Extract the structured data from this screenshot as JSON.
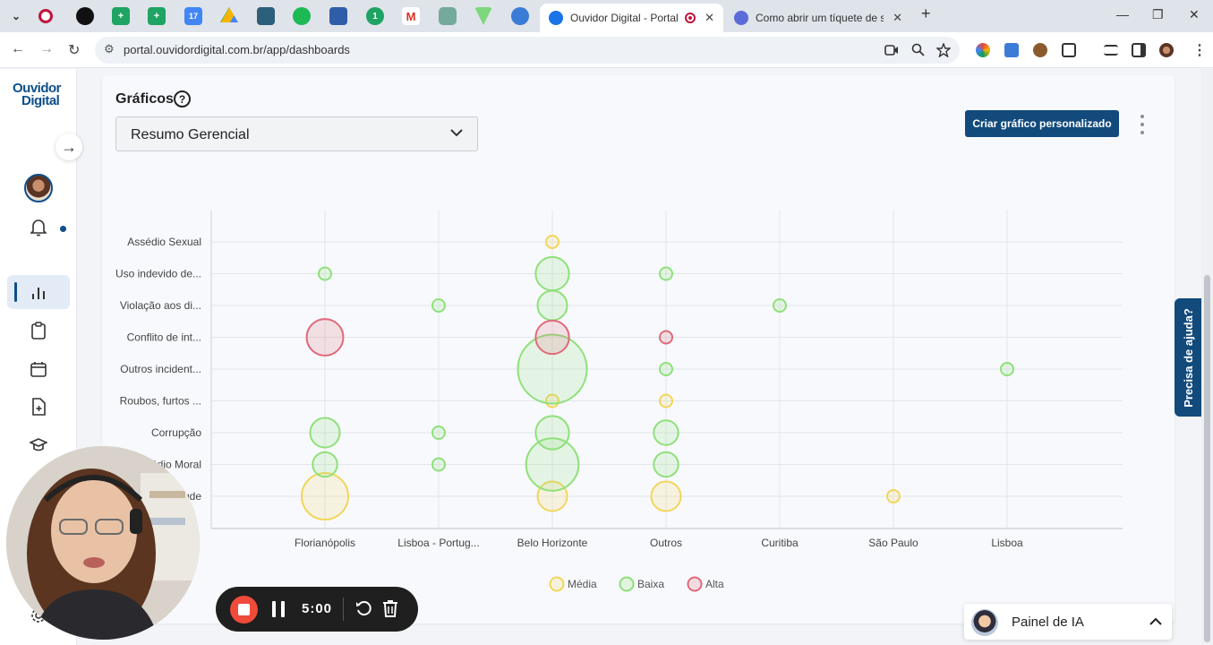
{
  "browser": {
    "tabs": [
      {
        "title": "Ouvidor Digital - Portal",
        "active": true
      },
      {
        "title": "Como abrir um tíquete de suporte",
        "active": false
      }
    ],
    "url": "portal.ouvidordigital.com.br/app/dashboards",
    "new_tab_glyph": "+",
    "minimize_glyph": "—",
    "restore_glyph": "❐",
    "close_glyph": "✕"
  },
  "sidebar": {
    "logo_top": "Ouvidor",
    "logo_bottom": "Digital",
    "items": [
      "bell-icon",
      "chart-icon",
      "clipboard-icon",
      "calendar-icon",
      "file-plus-icon",
      "graduation-cap-icon",
      "settings-icon"
    ]
  },
  "main": {
    "section_title": "Gráficos",
    "help_glyph": "?",
    "dashboard_select": "Resumo Gerencial",
    "create_button": "Criar gráfico personalizado"
  },
  "chart_data": {
    "type": "scatter",
    "x_categories": [
      "Florianópolis",
      "Lisboa - Portug...",
      "Belo Horizonte",
      "Outros",
      "Curitiba",
      "São Paulo",
      "Lisboa"
    ],
    "y_categories": [
      "Assédio Sexual",
      "Uso indevido de...",
      "Violação aos di...",
      "Conflito de int...",
      "Outros incident...",
      "Roubos, furtos ...",
      "Corrupção",
      "Assédio Moral",
      "Fraude"
    ],
    "legend_position": "bottom",
    "grid": true,
    "series": [
      {
        "name": "Média",
        "color": "#f2d55c",
        "points": [
          {
            "x": "Florianópolis",
            "y": "Fraude",
            "size": 5
          },
          {
            "x": "Belo Horizonte",
            "y": "Assédio Sexual",
            "size": 1
          },
          {
            "x": "Belo Horizonte",
            "y": "Roubos, furtos ...",
            "size": 1
          },
          {
            "x": "Belo Horizonte",
            "y": "Fraude",
            "size": 2
          },
          {
            "x": "Outros",
            "y": "Roubos, furtos ...",
            "size": 1
          },
          {
            "x": "Outros",
            "y": "Fraude",
            "size": 2
          },
          {
            "x": "São Paulo",
            "y": "Fraude",
            "size": 1
          }
        ]
      },
      {
        "name": "Baixa",
        "color": "#8fe07a",
        "points": [
          {
            "x": "Florianópolis",
            "y": "Uso indevido de...",
            "size": 1
          },
          {
            "x": "Florianópolis",
            "y": "Corrupção",
            "size": 2
          },
          {
            "x": "Florianópolis",
            "y": "Assédio Moral",
            "size": 1.5
          },
          {
            "x": "Lisboa - Portug...",
            "y": "Violação aos di...",
            "size": 1
          },
          {
            "x": "Lisboa - Portug...",
            "y": "Corrupção",
            "size": 1
          },
          {
            "x": "Lisboa - Portug...",
            "y": "Assédio Moral",
            "size": 1
          },
          {
            "x": "Belo Horizonte",
            "y": "Uso indevido de...",
            "size": 2.5
          },
          {
            "x": "Belo Horizonte",
            "y": "Violação aos di...",
            "size": 2
          },
          {
            "x": "Belo Horizonte",
            "y": "Outros incident...",
            "size": 12
          },
          {
            "x": "Belo Horizonte",
            "y": "Corrupção",
            "size": 2.5
          },
          {
            "x": "Belo Horizonte",
            "y": "Assédio Moral",
            "size": 6.5
          },
          {
            "x": "Outros",
            "y": "Uso indevido de...",
            "size": 1
          },
          {
            "x": "Outros",
            "y": "Outros incident...",
            "size": 1
          },
          {
            "x": "Outros",
            "y": "Corrupção",
            "size": 1.5
          },
          {
            "x": "Outros",
            "y": "Assédio Moral",
            "size": 1.5
          },
          {
            "x": "Curitiba",
            "y": "Violação aos di...",
            "size": 1
          },
          {
            "x": "Lisboa",
            "y": "Outros incident...",
            "size": 1
          }
        ]
      },
      {
        "name": "Alta",
        "color": "#e06a7a",
        "points": [
          {
            "x": "Florianópolis",
            "y": "Conflito de int...",
            "size": 3
          },
          {
            "x": "Belo Horizonte",
            "y": "Conflito de int...",
            "size": 2.5
          },
          {
            "x": "Outros",
            "y": "Conflito de int...",
            "size": 1
          }
        ]
      }
    ]
  },
  "help_tab": "Precisa de ajuda?",
  "ia_panel": {
    "label": "Painel de IA"
  },
  "recorder": {
    "time": "5:00"
  }
}
